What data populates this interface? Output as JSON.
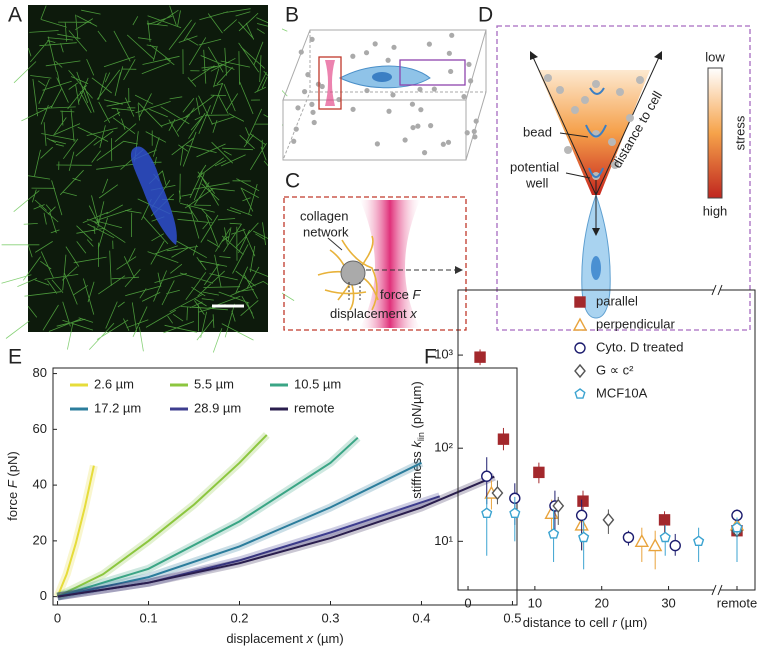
{
  "panels": {
    "a": {
      "label": "A"
    },
    "b": {
      "label": "B"
    },
    "c": {
      "label": "C",
      "network": [
        "collagen",
        "network"
      ],
      "force": "force",
      "force_symbol": "F",
      "displacement": "displacement",
      "displacement_symbol": "x"
    },
    "d": {
      "label": "D",
      "bead": "bead",
      "well": [
        "potential",
        "well"
      ],
      "distance": "distance to cell",
      "low": "low",
      "stress": "stress",
      "high": "high"
    },
    "e": {
      "label": "E"
    },
    "f": {
      "label": "F"
    }
  },
  "chart_data": [
    {
      "type": "line",
      "xlabel": "displacement",
      "xlabel_symbol": "x",
      "xlabel_unit": "(µm)",
      "ylabel": "force",
      "ylabel_symbol": "F",
      "ylabel_unit": "(pN)",
      "xlim": [
        -0.005,
        0.505
      ],
      "xticks": [
        0,
        0.1,
        0.2,
        0.3,
        0.4,
        0.5
      ],
      "ylim": [
        -3,
        82
      ],
      "yticks": [
        0,
        20,
        40,
        60,
        80
      ],
      "series": [
        {
          "name": "2.6 µm",
          "color": "#e6dc3a",
          "x": [
            0,
            0.01,
            0.02,
            0.03,
            0.04
          ],
          "values": [
            0,
            8,
            19,
            32,
            47
          ]
        },
        {
          "name": "5.5   µm",
          "color": "#8cc63f",
          "x": [
            0,
            0.05,
            0.1,
            0.15,
            0.2,
            0.23
          ],
          "values": [
            0,
            8,
            20,
            33,
            48,
            58
          ]
        },
        {
          "name": "10.5 µm",
          "color": "#3aa585",
          "x": [
            0,
            0.1,
            0.2,
            0.3,
            0.33
          ],
          "values": [
            0,
            10,
            27,
            48,
            57
          ]
        },
        {
          "name": "17.2 µm",
          "color": "#2b7d9c",
          "x": [
            0,
            0.1,
            0.2,
            0.3,
            0.4
          ],
          "values": [
            0,
            7,
            18,
            32,
            48
          ]
        },
        {
          "name": "28.9 µm",
          "color": "#3d3d8f",
          "x": [
            0,
            0.1,
            0.2,
            0.3,
            0.42
          ],
          "values": [
            0,
            5,
            13,
            23,
            36
          ]
        },
        {
          "name": "remote",
          "color": "#2a1e4e",
          "x": [
            0,
            0.1,
            0.2,
            0.3,
            0.4,
            0.48
          ],
          "values": [
            0,
            5,
            12,
            21,
            32,
            43
          ]
        }
      ]
    },
    {
      "type": "scatter",
      "log_y": true,
      "xlabel": "distance to cell",
      "xlabel_symbol": "r",
      "xlabel_unit": "(µm)",
      "ylabel": "stiffness",
      "ylabel_symbol": "k",
      "ylabel_sub": "lin",
      "ylabel_unit": "(pN/µm)",
      "xlim": [
        -1.5,
        36.5
      ],
      "xticks": [
        0,
        10,
        20,
        30
      ],
      "remote_label": "remote",
      "ylim": [
        3,
        5000
      ],
      "yticks": [
        {
          "value": 10,
          "label": "10¹"
        },
        {
          "value": 100,
          "label": "10²"
        },
        {
          "value": 1000,
          "label": "10³"
        }
      ],
      "series": [
        {
          "name": "parallel",
          "color": "#a3282c",
          "marker": "square",
          "x": [
            1.8,
            5.3,
            10.6,
            17.2,
            29.4
          ],
          "values": [
            950,
            125,
            55,
            27,
            17
          ],
          "y_lower": [
            780,
            95,
            42,
            20,
            12
          ],
          "y_upper": [
            1150,
            165,
            70,
            35,
            21
          ],
          "remote_value": 13,
          "remote_lower": 10,
          "remote_upper": 17
        },
        {
          "name": "perpendicular",
          "color": "#e8a33c",
          "marker": "triangle",
          "x": [
            3.5,
            12.5,
            17,
            26,
            28
          ],
          "values": [
            33,
            20,
            15,
            10,
            9
          ],
          "y_lower": [
            22,
            12,
            8,
            6,
            5
          ],
          "y_upper": [
            45,
            28,
            22,
            14,
            13
          ],
          "remote_value": 15,
          "remote_lower": 10,
          "remote_upper": 20
        },
        {
          "name": "Cyto. D treated",
          "color": "#1c1c6e",
          "marker": "circle",
          "x": [
            2.8,
            7,
            13,
            17,
            24,
            31
          ],
          "values": [
            50,
            29,
            24,
            19,
            11,
            9
          ],
          "y_lower": [
            25,
            15,
            12,
            8,
            9,
            7
          ],
          "y_upper": [
            80,
            42,
            35,
            28,
            13,
            12
          ],
          "remote_value": 19,
          "remote_lower": 16,
          "remote_upper": 22
        },
        {
          "name": "G ∝ c²",
          "color": "#555555",
          "marker": "diamond",
          "x": [
            4.4,
            13.5,
            21
          ],
          "values": [
            33,
            24,
            17
          ],
          "y_lower": [
            25,
            15,
            12
          ],
          "y_upper": [
            45,
            30,
            22
          ],
          "remote_value": 13,
          "remote_lower": 9,
          "remote_upper": 15
        },
        {
          "name": "MCF10A",
          "color": "#3ba3d0",
          "marker": "pentagon",
          "x": [
            2.8,
            7,
            12.8,
            17.3,
            29.5,
            34.5
          ],
          "values": [
            20,
            20,
            12,
            11,
            11,
            10
          ],
          "y_lower": [
            7,
            10,
            6,
            5,
            7,
            6
          ],
          "y_upper": [
            30,
            30,
            22,
            17,
            15,
            14
          ],
          "remote_value": 14,
          "remote_lower": 6,
          "remote_upper": 18
        }
      ]
    }
  ]
}
